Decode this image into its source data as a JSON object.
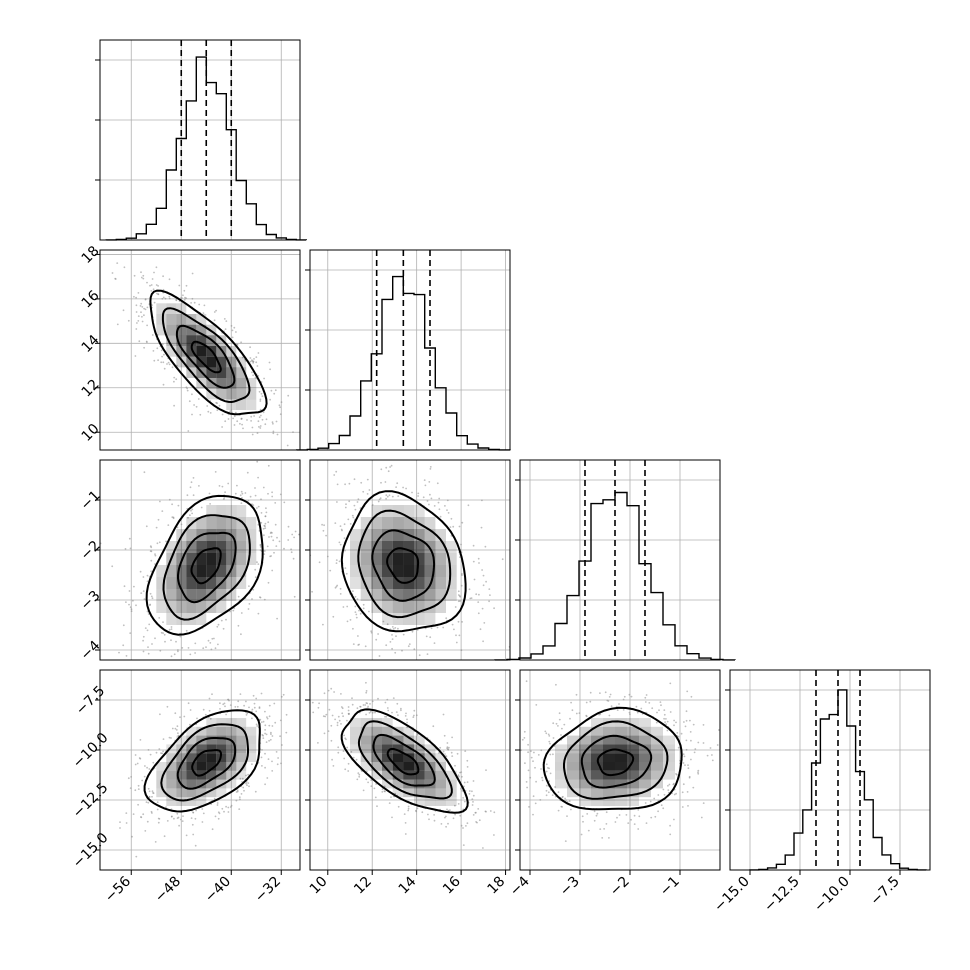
{
  "chart_data": {
    "type": "corner",
    "parameters": [
      {
        "index": 0,
        "ticks": [
          "−56",
          "−48",
          "−40",
          "−32"
        ],
        "tick_values": [
          -56,
          -48,
          -40,
          -32
        ],
        "range": [
          -61,
          -29
        ],
        "mean": -44,
        "sd": 4,
        "quantiles": [
          -48,
          -44,
          -40
        ]
      },
      {
        "index": 1,
        "ticks": [
          "10",
          "12",
          "14",
          "16",
          "18"
        ],
        "tick_values": [
          10,
          12,
          14,
          16,
          18
        ],
        "range": [
          9.2,
          18.2
        ],
        "mean": 13.4,
        "sd": 1.2,
        "quantiles": [
          12.2,
          13.4,
          14.6
        ]
      },
      {
        "index": 2,
        "ticks": [
          "−4",
          "−3",
          "−2",
          "−1"
        ],
        "tick_values": [
          -4,
          -3,
          -2,
          -1
        ],
        "range": [
          -4.2,
          -0.2
        ],
        "mean": -2.3,
        "sd": 0.6,
        "quantiles": [
          -2.9,
          -2.3,
          -1.7
        ]
      },
      {
        "index": 3,
        "ticks": [
          "−15.0",
          "−12.5",
          "−10.0",
          "−7.5"
        ],
        "tick_values": [
          -15,
          -12.5,
          -10,
          -7.5
        ],
        "range": [
          -16,
          -6
        ],
        "mean": -10.6,
        "sd": 1.1,
        "quantiles": [
          -11.7,
          -10.6,
          -9.5
        ]
      }
    ],
    "correlations": {
      "1-0": -0.75,
      "2-0": 0.4,
      "2-1": -0.15,
      "3-0": 0.5,
      "3-1": -0.65,
      "3-2": 0.1
    },
    "histogram_bins": 20,
    "contour_levels_sigma": [
      0.5,
      1.0,
      1.5,
      2.0
    ],
    "grid": true,
    "colors": {
      "contour": "#000000",
      "density": "#000000",
      "scatter": "#8a8a8a",
      "grid": "#b0b0b0"
    }
  }
}
